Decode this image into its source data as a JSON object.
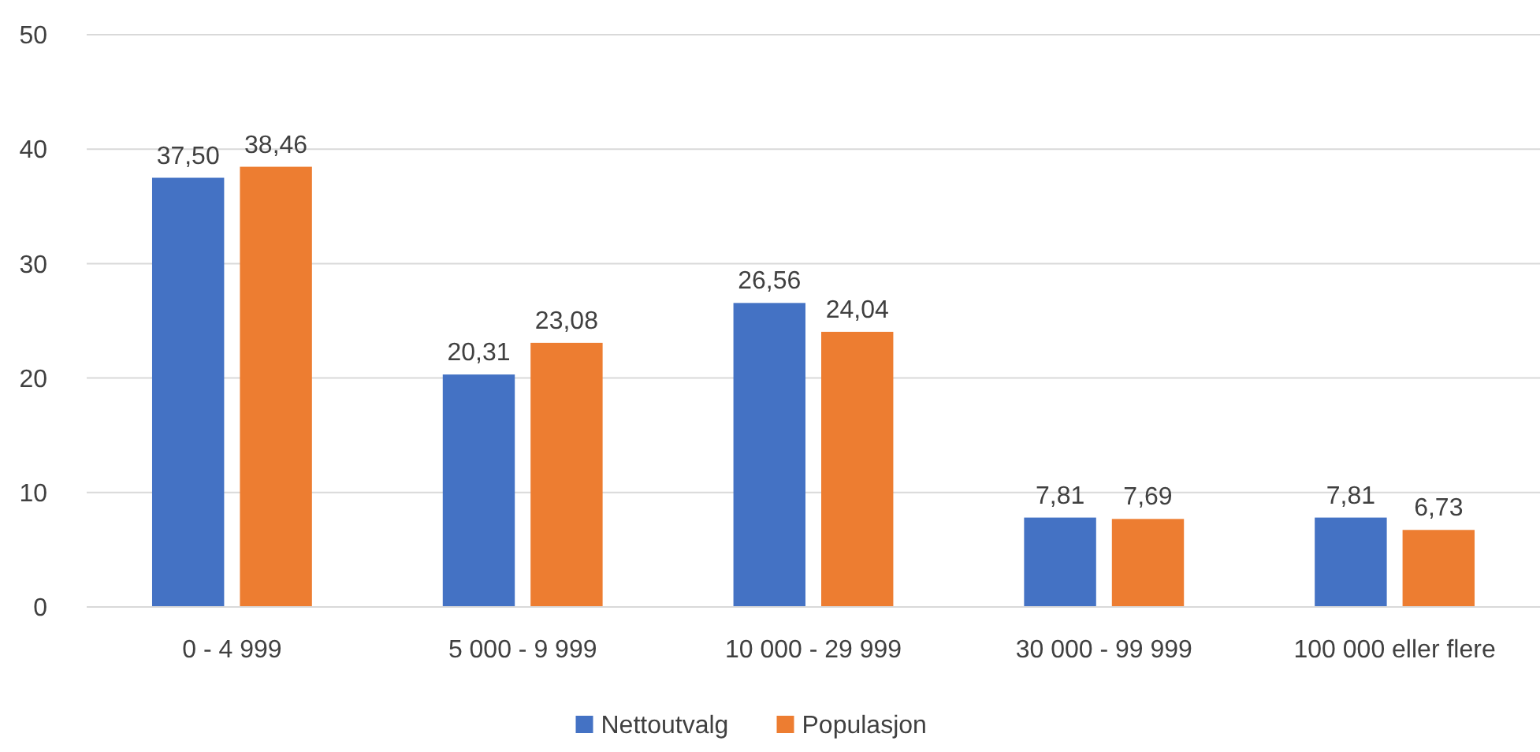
{
  "chart_data": {
    "type": "bar",
    "categories": [
      "0 - 4 999",
      "5 000 - 9 999",
      "10 000 - 29 999",
      "30 000 - 99 999",
      "100 000 eller flere"
    ],
    "series": [
      {
        "name": "Nettoutvalg",
        "color": "#4472c4",
        "values": [
          37.5,
          20.31,
          26.56,
          7.81,
          7.81
        ],
        "value_labels": [
          "37,50",
          "20,31",
          "26,56",
          "7,81",
          "7,81"
        ]
      },
      {
        "name": "Populasjon",
        "color": "#ed7d31",
        "values": [
          38.46,
          23.08,
          24.04,
          7.69,
          6.73
        ],
        "value_labels": [
          "38,46",
          "23,08",
          "24,04",
          "7,69",
          "6,73"
        ]
      }
    ],
    "ylim": [
      0,
      50
    ],
    "yticks": [
      0,
      10,
      20,
      30,
      40,
      50
    ],
    "grid": "y",
    "legend": "bottom"
  }
}
